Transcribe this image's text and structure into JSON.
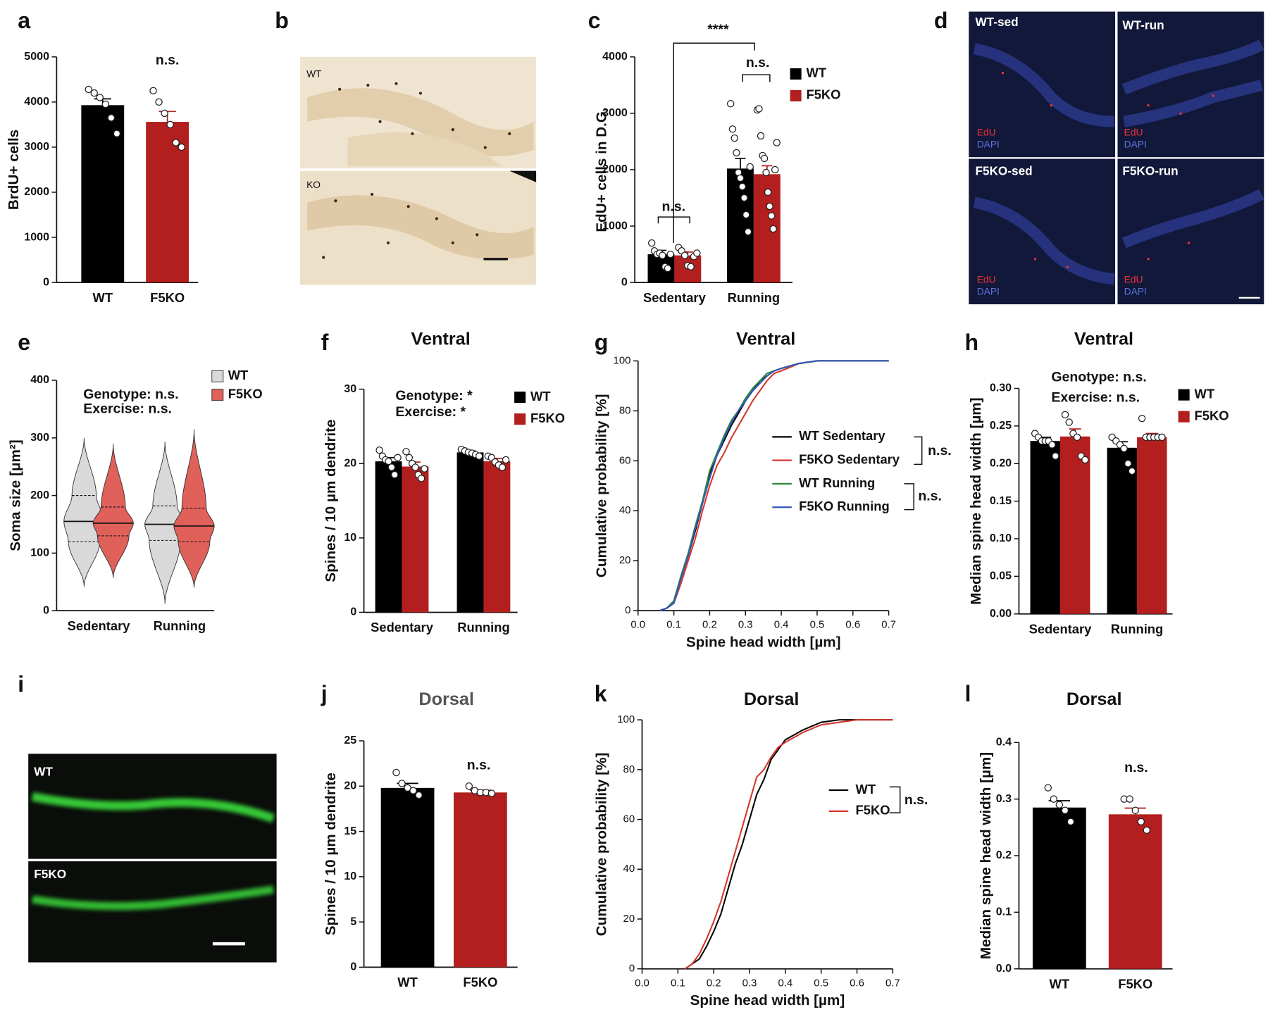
{
  "chart_data": [
    {
      "type": "bar",
      "panel": "a",
      "ylabel": "BrdU+ cells",
      "categories": [
        "WT",
        "F5KO"
      ],
      "values": [
        3930,
        3560
      ],
      "errors": [
        140,
        230
      ],
      "points": [
        [
          4280,
          4200,
          4100,
          3950,
          3650,
          3300
        ],
        [
          4250,
          4000,
          3750,
          3500,
          3100,
          3000
        ]
      ],
      "colors": [
        "#000000",
        "#b31e1e"
      ],
      "ylim": [
        0,
        5000
      ],
      "yticks": [
        0,
        1000,
        2000,
        3000,
        4000,
        5000
      ],
      "annotations": [
        "n.s."
      ]
    },
    {
      "type": "bar",
      "panel": "c",
      "ylabel": "EdU+ cells in D.G.",
      "categories": [
        "Sedentary",
        "Running"
      ],
      "series": [
        {
          "name": "WT",
          "color": "#000000",
          "values": [
            500,
            2020
          ],
          "errors": [
            70,
            180
          ],
          "points": [
            [
              700,
              560,
              500,
              520,
              480,
              280,
              250,
              500
            ],
            [
              3170,
              2720,
              2560,
              2300,
              1950,
              1850,
              1700,
              1500,
              1200,
              900,
              2050
            ]
          ]
        },
        {
          "name": "F5KO",
          "color": "#b31e1e",
          "values": [
            480,
            1920
          ],
          "errors": [
            60,
            150
          ],
          "points": [
            [
              620,
              560,
              480,
              300,
              280,
              460,
              520
            ],
            [
              3060,
              3080,
              2600,
              2250,
              2200,
              1950,
              1600,
              1350,
              1180,
              950,
              2000,
              2480
            ]
          ]
        }
      ],
      "ylim": [
        0,
        4000
      ],
      "yticks": [
        0,
        1000,
        2000,
        3000,
        4000
      ],
      "annotations": [
        "****",
        "n.s.",
        "n.s."
      ]
    },
    {
      "type": "violin",
      "panel": "e",
      "ylabel": "Soma size [μm²]",
      "categories": [
        "Sedentary",
        "Running"
      ],
      "series": [
        {
          "name": "WT",
          "color": "#d9d9d9",
          "min": [
            42,
            12
          ],
          "q1": [
            120,
            122
          ],
          "median": [
            155,
            150
          ],
          "q3": [
            200,
            182
          ],
          "max": [
            300,
            293
          ]
        },
        {
          "name": "F5KO",
          "color": "#e0605a",
          "min": [
            57,
            40
          ],
          "q1": [
            130,
            120
          ],
          "median": [
            152,
            147
          ],
          "q3": [
            180,
            178
          ],
          "max": [
            290,
            315
          ]
        }
      ],
      "ylim": [
        0,
        400
      ],
      "yticks": [
        0,
        100,
        200,
        300,
        400
      ],
      "annotations": [
        "Genotype: n.s.",
        "Exercise: n.s."
      ]
    },
    {
      "type": "bar",
      "panel": "f",
      "title": "Ventral",
      "ylabel": "Spines / 10 µm dendrite",
      "categories": [
        "Sedentary",
        "Running"
      ],
      "series": [
        {
          "name": "WT",
          "color": "#000000",
          "values": [
            20.3,
            21.5
          ],
          "errors": [
            0.5,
            0.2
          ],
          "points": [
            [
              21.8,
              21,
              20.5,
              20.3,
              19.5,
              18.5,
              20.8
            ],
            [
              21.9,
              21.7,
              21.5,
              21.4,
              21.2,
              21
            ]
          ]
        },
        {
          "name": "F5KO",
          "color": "#b31e1e",
          "values": [
            19.6,
            20.3
          ],
          "errors": [
            0.6,
            0.4
          ],
          "points": [
            [
              21.6,
              20.8,
              20,
              19.5,
              18.5,
              18,
              19.3
            ],
            [
              21,
              20.8,
              20.2,
              19.8,
              19.5,
              20.5
            ]
          ]
        }
      ],
      "ylim": [
        0,
        30
      ],
      "yticks": [
        0,
        10,
        20,
        30
      ],
      "annotations": [
        "Genotype: *",
        "Exercise: *"
      ]
    },
    {
      "type": "line",
      "panel": "g",
      "title": "Ventral",
      "xlabel": "Spine head width [µm]",
      "ylabel": "Cumulative probability [%]",
      "x": [
        0.06,
        0.08,
        0.1,
        0.12,
        0.14,
        0.16,
        0.18,
        0.2,
        0.22,
        0.24,
        0.26,
        0.28,
        0.3,
        0.32,
        0.34,
        0.36,
        0.38,
        0.4,
        0.45,
        0.5,
        0.6,
        0.7
      ],
      "series": [
        {
          "name": "WT Sedentary",
          "color": "#000000",
          "values": [
            0,
            1,
            3,
            13,
            22,
            32,
            43,
            55,
            62,
            68,
            74,
            79,
            84,
            88,
            92,
            94,
            96,
            97,
            99,
            100,
            100,
            100
          ]
        },
        {
          "name": "F5KO Sedentary",
          "color": "#d4372c",
          "values": [
            0,
            1,
            3,
            11,
            20,
            29,
            40,
            50,
            58,
            63,
            69,
            74,
            79,
            84,
            88,
            92,
            95,
            96,
            99,
            100,
            100,
            100
          ]
        },
        {
          "name": "WT Running",
          "color": "#2e8b3a",
          "values": [
            0,
            1,
            4,
            14,
            23,
            34,
            44,
            56,
            63,
            70,
            76,
            80,
            85,
            89,
            92,
            95,
            96,
            97,
            99,
            100,
            100,
            100
          ]
        },
        {
          "name": "F5KO Running",
          "color": "#3355bb",
          "values": [
            0,
            1,
            3,
            13,
            22,
            33,
            43,
            53,
            62,
            69,
            75,
            80,
            84,
            88,
            91,
            94,
            96,
            97,
            99,
            100,
            100,
            100
          ]
        }
      ],
      "xlim": [
        0,
        0.7
      ],
      "xticks": [
        {
          "value": 0,
          "label": "0.0"
        },
        0.1,
        0.2,
        0.3,
        0.4,
        0.5,
        0.6,
        0.7
      ],
      "ylim": [
        0,
        100
      ],
      "yticks": [
        0,
        20,
        40,
        60,
        80,
        100
      ],
      "annotations": [
        "n.s.",
        "n.s."
      ]
    },
    {
      "type": "bar",
      "panel": "h",
      "title": "Ventral",
      "ylabel": "Median spine head width [µm]",
      "categories": [
        "Sedentary",
        "Running"
      ],
      "series": [
        {
          "name": "WT",
          "color": "#000000",
          "values": [
            0.23,
            0.221
          ],
          "errors": [
            0.005,
            0.008
          ],
          "points": [
            [
              0.24,
              0.235,
              0.23,
              0.23,
              0.23,
              0.225,
              0.21
            ],
            [
              0.235,
              0.23,
              0.225,
              0.22,
              0.2,
              0.19
            ]
          ]
        },
        {
          "name": "F5KO",
          "color": "#b31e1e",
          "values": [
            0.236,
            0.235
          ],
          "errors": [
            0.01,
            0.005
          ],
          "points": [
            [
              0.265,
              0.255,
              0.24,
              0.235,
              0.21,
              0.205
            ],
            [
              0.26,
              0.235,
              0.235,
              0.235,
              0.235,
              0.235
            ]
          ]
        }
      ],
      "ylim": [
        0,
        0.3
      ],
      "yticks": [
        {
          "value": 0,
          "label": "0.00"
        },
        {
          "value": 0.05,
          "label": "0.05"
        },
        {
          "value": 0.1,
          "label": "0.10"
        },
        {
          "value": 0.15,
          "label": "0.15"
        },
        {
          "value": 0.2,
          "label": "0.20"
        },
        {
          "value": 0.25,
          "label": "0.25"
        },
        {
          "value": 0.3,
          "label": "0.30"
        }
      ],
      "annotations": [
        "Genotype: n.s.",
        "Exercise: n.s."
      ]
    },
    {
      "type": "bar",
      "panel": "j",
      "title": "Dorsal",
      "ylabel": "Spines / 10 µm dendrite",
      "categories": [
        "WT",
        "F5KO"
      ],
      "values": [
        19.8,
        19.3
      ],
      "errors": [
        0.5,
        0.25
      ],
      "points": [
        [
          21.5,
          20.3,
          19.8,
          19.5,
          19.0
        ],
        [
          20,
          19.5,
          19.3,
          19.3,
          19.2
        ]
      ],
      "colors": [
        "#000000",
        "#b31e1e"
      ],
      "ylim": [
        0,
        25
      ],
      "yticks": [
        0,
        5,
        10,
        15,
        20,
        25
      ],
      "annotations": [
        "n.s."
      ]
    },
    {
      "type": "line",
      "panel": "k",
      "title": "Dorsal",
      "xlabel": "Spine head width [µm]",
      "ylabel": "Cumulative probability [%]",
      "x": [
        0.12,
        0.14,
        0.16,
        0.18,
        0.2,
        0.22,
        0.24,
        0.26,
        0.28,
        0.3,
        0.32,
        0.34,
        0.36,
        0.38,
        0.4,
        0.45,
        0.5,
        0.55,
        0.6,
        0.7
      ],
      "series": [
        {
          "name": "WT",
          "color": "#000000",
          "values": [
            0,
            2,
            4,
            9,
            15,
            22,
            32,
            42,
            50,
            60,
            70,
            76,
            84,
            88,
            92,
            96,
            99,
            100,
            100,
            100
          ]
        },
        {
          "name": "F5KO",
          "color": "#d4372c",
          "values": [
            0,
            2,
            6,
            12,
            19,
            27,
            37,
            47,
            57,
            67,
            77,
            80,
            85,
            89,
            91,
            95,
            98,
            99,
            100,
            100
          ]
        }
      ],
      "xlim": [
        0,
        0.7
      ],
      "xticks": [
        {
          "value": 0,
          "label": "0.0"
        },
        0.1,
        0.2,
        0.3,
        0.4,
        0.5,
        0.6,
        0.7
      ],
      "ylim": [
        0,
        100
      ],
      "yticks": [
        0,
        20,
        40,
        60,
        80,
        100
      ],
      "annotations": [
        "n.s."
      ]
    },
    {
      "type": "bar",
      "panel": "l",
      "title": "Dorsal",
      "ylabel": "Median spine head width [µm]",
      "categories": [
        "WT",
        "F5KO"
      ],
      "values": [
        0.285,
        0.273
      ],
      "errors": [
        0.012,
        0.011
      ],
      "points": [
        [
          0.32,
          0.3,
          0.29,
          0.28,
          0.26
        ],
        [
          0.3,
          0.3,
          0.28,
          0.26,
          0.245
        ]
      ],
      "colors": [
        "#000000",
        "#b31e1e"
      ],
      "ylim": [
        0,
        0.4
      ],
      "yticks": [
        {
          "value": 0,
          "label": "0.0"
        },
        0.1,
        0.2,
        0.3,
        0.4
      ],
      "annotations": [
        "n.s."
      ]
    }
  ],
  "images": [
    {
      "panel": "b",
      "labels": [
        "WT",
        "KO"
      ]
    },
    {
      "panel": "d",
      "labels": [
        "WT-sed",
        "WT-run",
        "F5KO-sed",
        "F5KO-run"
      ],
      "channels": [
        "EdU",
        "DAPI"
      ]
    },
    {
      "panel": "i",
      "labels": [
        "WT",
        "F5KO"
      ]
    }
  ]
}
